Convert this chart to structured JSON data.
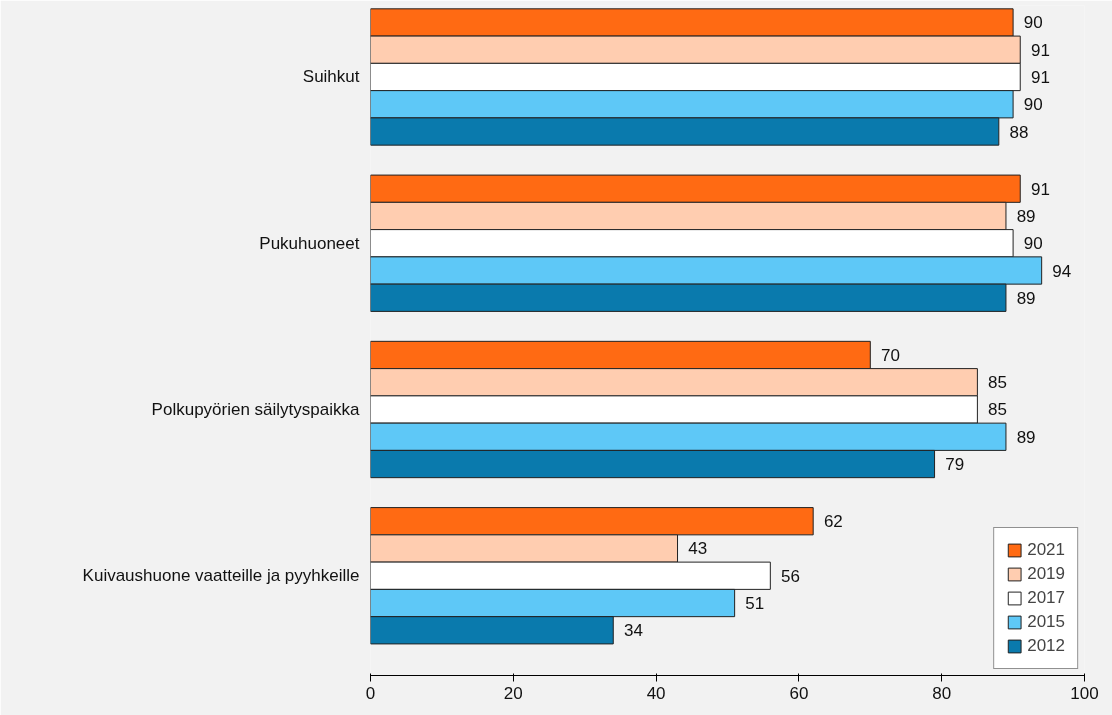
{
  "chart_data": {
    "type": "bar",
    "orientation": "horizontal",
    "categories": [
      "Suihkut",
      "Pukuhuoneet",
      "Polkupyörien säilytyspaikka",
      "Kuivaushuone vaatteille ja pyyhkeille"
    ],
    "series": [
      {
        "name": "2021",
        "color": "#ff6a13",
        "values": [
          90,
          91,
          70,
          62
        ]
      },
      {
        "name": "2019",
        "color": "#ffcdb0",
        "values": [
          91,
          89,
          85,
          43
        ]
      },
      {
        "name": "2017",
        "color": "#ffffff",
        "values": [
          91,
          90,
          85,
          56
        ]
      },
      {
        "name": "2015",
        "color": "#5ec8f7",
        "values": [
          90,
          94,
          89,
          51
        ]
      },
      {
        "name": "2012",
        "color": "#0a7aad",
        "values": [
          88,
          89,
          79,
          34
        ]
      }
    ],
    "xlim": [
      0,
      100
    ],
    "xticks": [
      0,
      20,
      40,
      60,
      80,
      100
    ],
    "grid": false,
    "legend": "bottom right",
    "data_labels": true
  }
}
